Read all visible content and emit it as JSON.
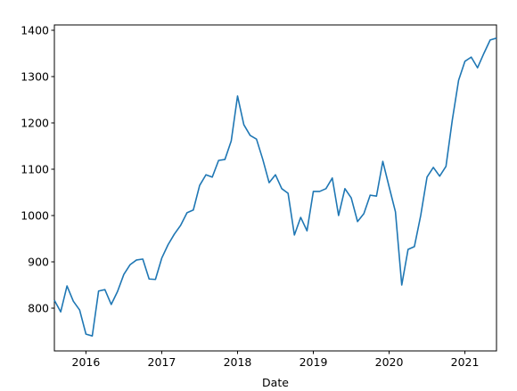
{
  "chart_data": {
    "type": "line",
    "x_label": "Date",
    "x": [
      "2015-08",
      "2015-09",
      "2015-10",
      "2015-11",
      "2015-12",
      "2016-01",
      "2016-02",
      "2016-03",
      "2016-04",
      "2016-05",
      "2016-06",
      "2016-07",
      "2016-08",
      "2016-09",
      "2016-10",
      "2016-11",
      "2016-12",
      "2017-01",
      "2017-02",
      "2017-03",
      "2017-04",
      "2017-05",
      "2017-06",
      "2017-07",
      "2017-08",
      "2017-09",
      "2017-10",
      "2017-11",
      "2017-12",
      "2018-01",
      "2018-02",
      "2018-03",
      "2018-04",
      "2018-05",
      "2018-06",
      "2018-07",
      "2018-08",
      "2018-09",
      "2018-10",
      "2018-11",
      "2018-12",
      "2019-01",
      "2019-02",
      "2019-03",
      "2019-04",
      "2019-05",
      "2019-06",
      "2019-07",
      "2019-08",
      "2019-09",
      "2019-10",
      "2019-11",
      "2019-12",
      "2020-01",
      "2020-02",
      "2020-03",
      "2020-04",
      "2020-05",
      "2020-06",
      "2020-07",
      "2020-08",
      "2020-09",
      "2020-10",
      "2020-11",
      "2020-12",
      "2021-01",
      "2021-02",
      "2021-03",
      "2021-04",
      "2021-05",
      "2021-06"
    ],
    "values": [
      817,
      792,
      848,
      815,
      796,
      744,
      740,
      837,
      840,
      808,
      836,
      873,
      894,
      904,
      906,
      863,
      862,
      908,
      937,
      960,
      979,
      1006,
      1012,
      1065,
      1088,
      1083,
      1119,
      1121,
      1161,
      1258,
      1196,
      1173,
      1165,
      1121,
      1071,
      1088,
      1058,
      1048,
      958,
      996,
      967,
      1052,
      1052,
      1058,
      1081,
      1000,
      1058,
      1038,
      987,
      1004,
      1044,
      1042,
      1117,
      1062,
      1008,
      850,
      927,
      933,
      1000,
      1083,
      1104,
      1085,
      1106,
      1206,
      1292,
      1333,
      1342,
      1319,
      1350,
      1379,
      1383
    ],
    "color": "#1f77b4",
    "xlim": [
      "2015-08",
      "2021-06"
    ],
    "xticks": [
      {
        "value": "2016-01",
        "label": "2016"
      },
      {
        "value": "2017-01",
        "label": "2017"
      },
      {
        "value": "2018-01",
        "label": "2018"
      },
      {
        "value": "2019-01",
        "label": "2019"
      },
      {
        "value": "2020-01",
        "label": "2020"
      },
      {
        "value": "2021-01",
        "label": "2021"
      }
    ],
    "ylim": [
      707.7,
      1411.5
    ],
    "yticks": [
      800,
      900,
      1000,
      1100,
      1200,
      1300,
      1400
    ]
  }
}
